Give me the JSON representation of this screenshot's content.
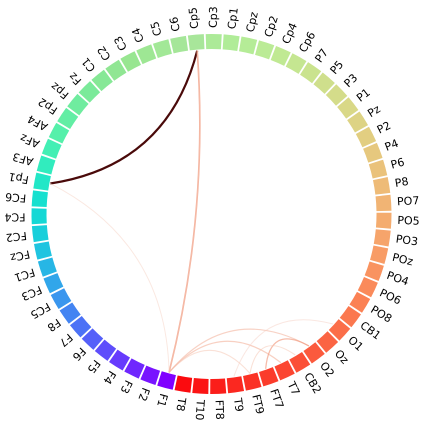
{
  "chart_data": {
    "type": "chord",
    "title": "",
    "electrodes": [
      "Cp5",
      "Cp3",
      "Cp1",
      "Cpz",
      "Cp2",
      "Cp4",
      "Cp6",
      "P7",
      "P5",
      "P3",
      "P1",
      "Pz",
      "P2",
      "P4",
      "P6",
      "P8",
      "PO7",
      "PO5",
      "PO3",
      "POz",
      "PO4",
      "PO6",
      "PO8",
      "CB1",
      "O1",
      "Oz",
      "O2",
      "CB2",
      "T7",
      "FT7",
      "FT9",
      "T9",
      "FT8",
      "T10",
      "T8",
      "F1",
      "F2",
      "F3",
      "F4",
      "F5",
      "F6",
      "F7",
      "F8",
      "FC5",
      "FC3",
      "FC1",
      "FCz",
      "FC2",
      "FC4",
      "FC6",
      "Fp1",
      "AF3",
      "AFz",
      "AF4",
      "Fp2",
      "Fpz",
      "Fz",
      "C1",
      "C2",
      "C3",
      "C4",
      "C5",
      "C6"
    ],
    "segment_colors": [
      "#a8e69a",
      "#acea98",
      "#b0ec98",
      "#b5ec97",
      "#bbeb96",
      "#c0e993",
      "#c5e691",
      "#cae38e",
      "#cfdf8c",
      "#d4dc8a",
      "#d9d887",
      "#ddd384",
      "#e2ce81",
      "#e6c87e",
      "#eac27b",
      "#eebb77",
      "#f1b474",
      "#f4ac6f",
      "#f6a46b",
      "#f89c66",
      "#f99360",
      "#fa8a5a",
      "#fb8154",
      "#fb784f",
      "#fb6e49",
      "#fb6443",
      "#fb5a3d",
      "#fb5037",
      "#fb4631",
      "#fb3c2b",
      "#fb3225",
      "#fb2820",
      "#fb1e1a",
      "#fb1414",
      "#fb0b0f",
      "#8000ff",
      "#7814ff",
      "#6f27fe",
      "#673bfd",
      "#5e4dfb",
      "#5560f9",
      "#4c72f6",
      "#4384f2",
      "#3a96ee",
      "#31a6ea",
      "#27b6e5",
      "#1fc4e0",
      "#18cfdb",
      "#14d8d5",
      "#17e0cf",
      "#22e7c7",
      "#31ecbe",
      "#43efb4",
      "#55f0aa",
      "#62eea4",
      "#6fec9f",
      "#7bea9a",
      "#86e896",
      "#90e693",
      "#98e691",
      "#9ee794",
      "#a2e897",
      "#a5e699"
    ],
    "links": [
      {
        "source": "Cp5",
        "target": "Fp1",
        "weight": 1.0,
        "color": "#4a0a0a"
      },
      {
        "source": "Cp5",
        "target": "F1",
        "weight": 0.6,
        "color": "#f1967a"
      },
      {
        "source": "Cp5",
        "target": "F1",
        "weight": 0.15,
        "color": "#f6c9b8"
      },
      {
        "source": "Fp1",
        "target": "F1",
        "weight": 0.12,
        "color": "#f6d2c6"
      },
      {
        "source": "F1",
        "target": "T7",
        "weight": 0.3,
        "color": "#f3b29c"
      },
      {
        "source": "F1",
        "target": "FT9",
        "weight": 0.2,
        "color": "#f6c9b8"
      },
      {
        "source": "F1",
        "target": "O2",
        "weight": 0.25,
        "color": "#f3b29c"
      },
      {
        "source": "FT7",
        "target": "O2",
        "weight": 0.35,
        "color": "#f1967a"
      },
      {
        "source": "FT9",
        "target": "CB2",
        "weight": 0.2,
        "color": "#f6c9b8"
      },
      {
        "source": "T9",
        "target": "O1",
        "weight": 0.15,
        "color": "#f6d2c6"
      }
    ]
  }
}
